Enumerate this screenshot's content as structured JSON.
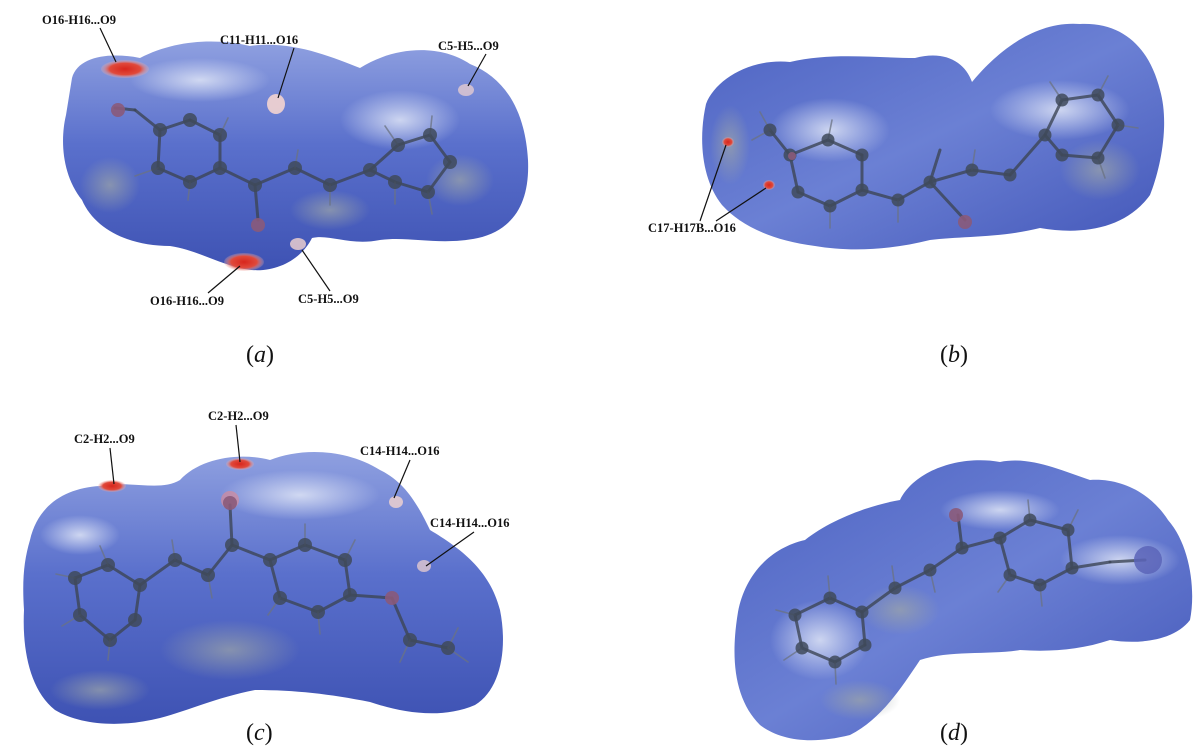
{
  "panels": [
    {
      "id": "a",
      "caption": "a",
      "contacts": [
        "O16-H16...O9",
        "C11-H11...O16",
        "C5-H5...O9",
        "O16-H16...O9",
        "C5-H5...O9"
      ]
    },
    {
      "id": "b",
      "caption": "b",
      "contacts": [
        "C17-H17B...O16"
      ]
    },
    {
      "id": "c",
      "caption": "c",
      "contacts": [
        "C2-H2...O9",
        "C2-H2...O9",
        "C14-H14...O16",
        "C14-H14...O16"
      ]
    },
    {
      "id": "d",
      "caption": "d",
      "contacts": []
    }
  ],
  "colors": {
    "surface_blue": "#4f66c4",
    "surface_light": "#c9d2ef",
    "contact_red": "#d8261c",
    "label_text": "#111111"
  }
}
